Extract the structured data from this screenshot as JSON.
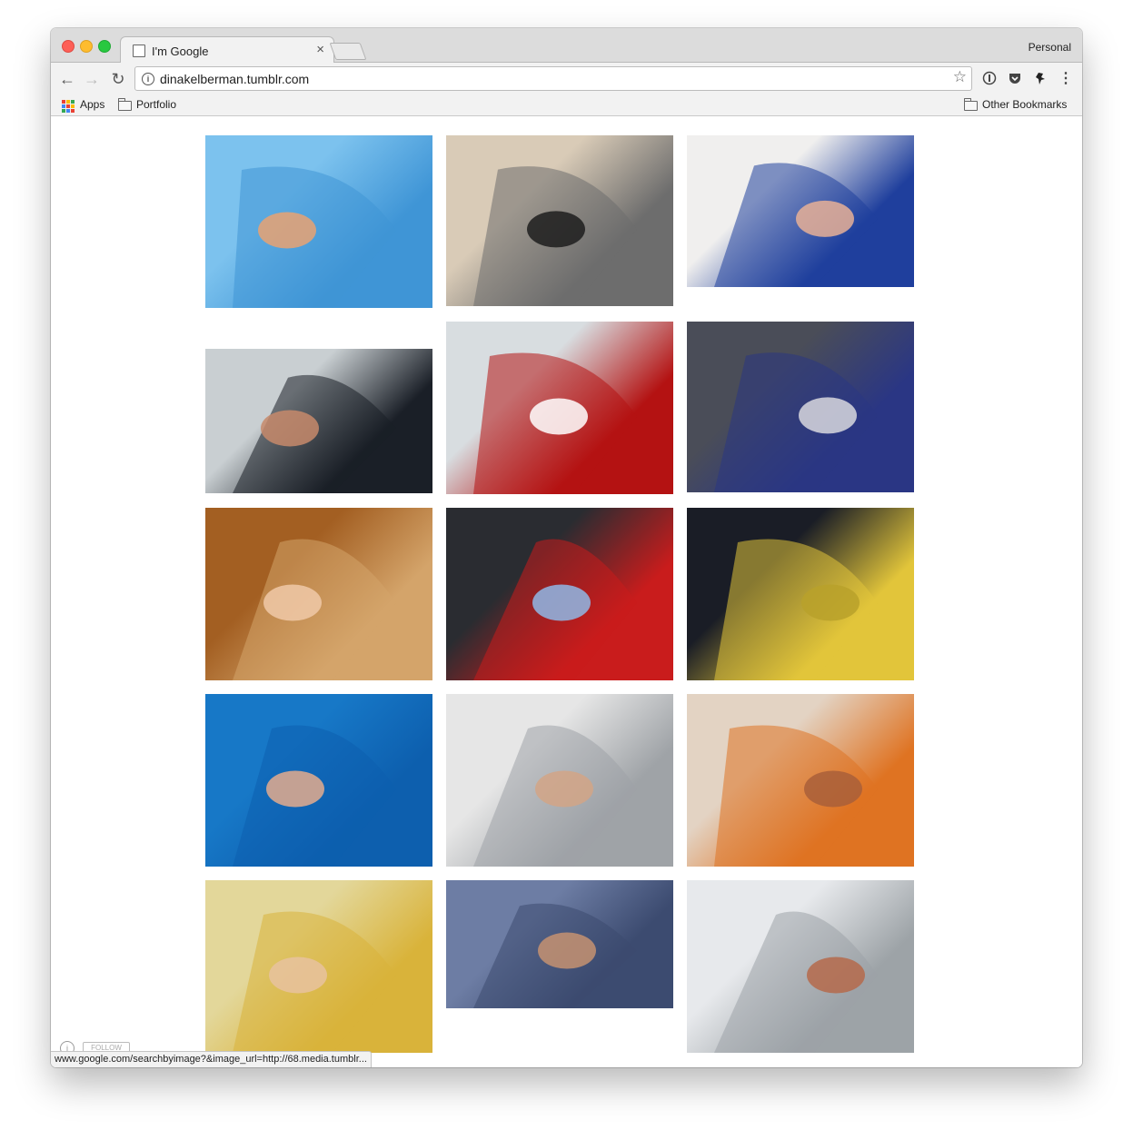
{
  "browser": {
    "tab_title": "I'm Google",
    "tab_close": "×",
    "profile": "Personal",
    "url": "dinakelberman.tumblr.com",
    "status_url": "www.google.com/searchbyimage?&image_url=http://68.media.tumblr...",
    "follow_label": "FOLLOW"
  },
  "bookmarks": {
    "apps": "Apps",
    "portfolio": "Portfolio",
    "other": "Other Bookmarks"
  },
  "colors": {
    "accent_red": "#fd5f57",
    "accent_yellow": "#febc2e",
    "accent_green": "#28c840"
  },
  "gallery": [
    {
      "name": "blue-film-window",
      "colors": [
        "#7cc2ee",
        "#3f95d6"
      ],
      "accent": "#e9a272"
    },
    {
      "name": "grey-sheet-wall",
      "colors": [
        "#d9cbb7",
        "#6d6d6d"
      ],
      "accent": "#1d1d1d"
    },
    {
      "name": "blue-bathtub-coating",
      "colors": [
        "#f0efee",
        "#1f3f9d"
      ],
      "accent": "#e7b096"
    },
    {
      "name": "black-film-glass",
      "colors": [
        "#c9cfd2",
        "#1a1f27"
      ],
      "accent": "#c78a6b"
    },
    {
      "name": "stop-sign-wrap",
      "colors": [
        "#d8dde0",
        "#b41212"
      ],
      "accent": "#ffffff"
    },
    {
      "name": "blue-car-window",
      "colors": [
        "#4a4d58",
        "#2a3684"
      ],
      "accent": "#d8d8de"
    },
    {
      "name": "clear-coat-wood",
      "colors": [
        "#a35f22",
        "#d4a46a"
      ],
      "accent": "#f0c9a8"
    },
    {
      "name": "red-wheel-peel",
      "colors": [
        "#2a2c31",
        "#c91c1c"
      ],
      "accent": "#8fb8e6"
    },
    {
      "name": "yellow-safe-peel",
      "colors": [
        "#1a1d26",
        "#e2c53a"
      ],
      "accent": "#b9a12a"
    },
    {
      "name": "blue-liquid-peel",
      "colors": [
        "#1778c7",
        "#0d5fae"
      ],
      "accent": "#e4ab8d"
    },
    {
      "name": "white-car-peel",
      "colors": [
        "#e6e6e6",
        "#9fa3a7"
      ],
      "accent": "#d2a486"
    },
    {
      "name": "orange-wall-peel",
      "colors": [
        "#e3d3c3",
        "#df7322"
      ],
      "accent": "#a95f3a"
    },
    {
      "name": "yellow-gel-sheet",
      "colors": [
        "#e3d79a",
        "#d9b33a"
      ],
      "accent": "#e8c29f"
    },
    {
      "name": "blue-wrap-floor",
      "colors": [
        "#6d7da4",
        "#3c4b70"
      ],
      "accent": "#c59271"
    },
    {
      "name": "clear-plastic-bag",
      "colors": [
        "#e7e9ec",
        "#9da3a7"
      ],
      "accent": "#b56a4b"
    }
  ]
}
